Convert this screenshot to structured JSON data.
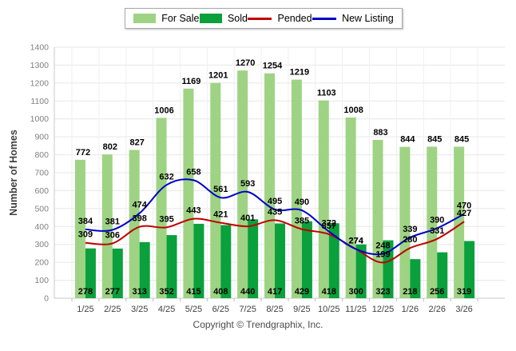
{
  "y_axis_label": "Number of Homes",
  "copyright": "Copyright © Trendgraphix, Inc.",
  "colors": {
    "for_sale": "#9ed383",
    "sold": "#0aa03c",
    "pended": "#c00000",
    "new_listing": "#0000c8",
    "grid": "#e7e7e7",
    "axis": "#c9c9c9",
    "ytick_text": "#808080",
    "xtick_text": "#404040"
  },
  "chart_data": {
    "type": "bar",
    "subtype": "grouped-bars-with-lines",
    "title": "",
    "xlabel": "",
    "ylabel": "Number of Homes",
    "ylim": [
      0,
      1400
    ],
    "ytick_step": 100,
    "grid": true,
    "legend_position": "top",
    "categories": [
      "1/25",
      "2/25",
      "3/25",
      "4/25",
      "5/25",
      "6/25",
      "7/25",
      "8/25",
      "9/25",
      "10/25",
      "11/25",
      "12/25",
      "1/26",
      "2/26",
      "3/26"
    ],
    "series": [
      {
        "name": "For Sale",
        "type": "bar",
        "color": "#9ed383",
        "values": [
          772,
          802,
          827,
          1006,
          1169,
          1201,
          1270,
          1254,
          1219,
          1103,
          1008,
          883,
          844,
          845,
          845
        ]
      },
      {
        "name": "Sold",
        "type": "bar",
        "color": "#0aa03c",
        "values": [
          278,
          277,
          313,
          352,
          415,
          408,
          440,
          417,
          429,
          418,
          300,
          323,
          218,
          256,
          319
        ]
      },
      {
        "name": "Pended",
        "type": "line",
        "color": "#c00000",
        "values": [
          309,
          306,
          398,
          395,
          443,
          421,
          401,
          435,
          385,
          357,
          274,
          199,
          280,
          331,
          427
        ]
      },
      {
        "name": "New Listing",
        "type": "line",
        "color": "#0000c8",
        "values": [
          384,
          381,
          474,
          632,
          658,
          561,
          593,
          495,
          490,
          372,
          274,
          248,
          339,
          390,
          470
        ]
      }
    ]
  }
}
